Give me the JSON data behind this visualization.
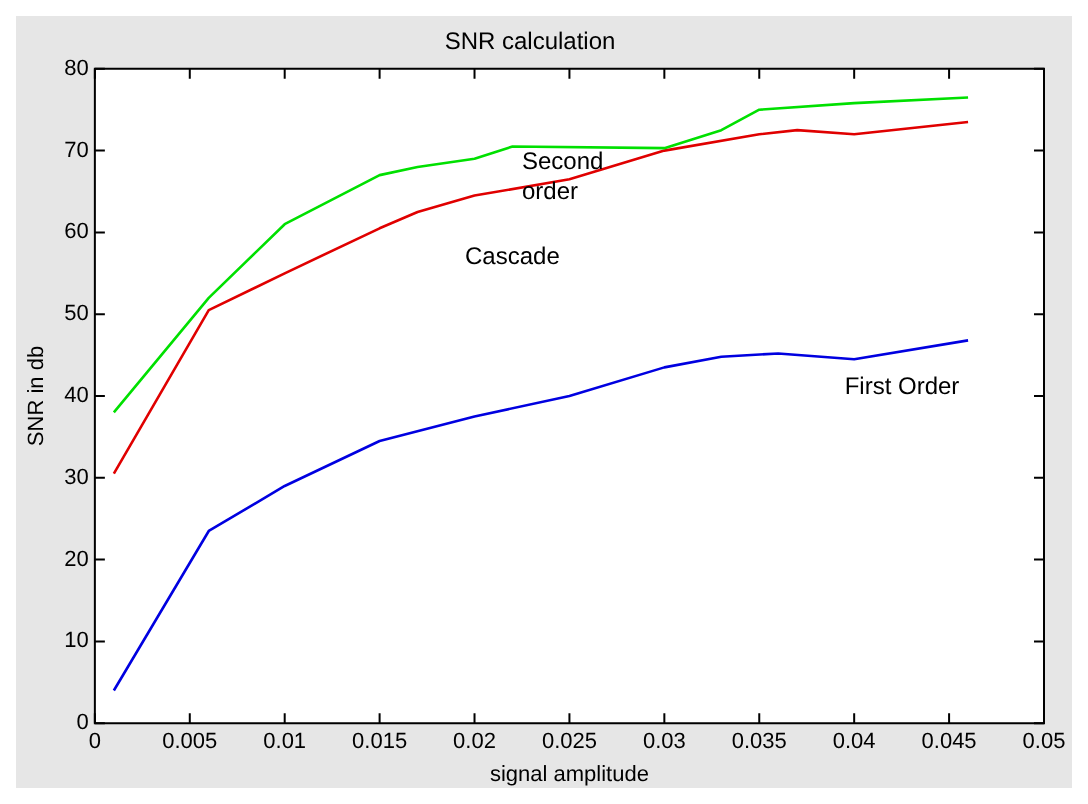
{
  "chart_data": {
    "type": "line",
    "title": "SNR calculation",
    "xlabel": "signal amplitude",
    "ylabel": "SNR in db",
    "xlim": [
      0,
      0.05
    ],
    "xticks": [
      0,
      0.005,
      0.01,
      0.015,
      0.02,
      0.025,
      0.03,
      0.035,
      0.04,
      0.045,
      0.05
    ],
    "ylim": [
      0,
      80
    ],
    "yticks": [
      0,
      10,
      20,
      30,
      40,
      50,
      60,
      70,
      80
    ],
    "grid": false,
    "legend": false,
    "marker": "none",
    "line_style": "solid",
    "series": [
      {
        "name": "Second order",
        "color": "#00e000",
        "x": [
          0.001,
          0.006,
          0.01,
          0.015,
          0.017,
          0.02,
          0.022,
          0.03,
          0.033,
          0.035,
          0.04,
          0.046
        ],
        "values": [
          38,
          52,
          61,
          67,
          68,
          69,
          70.5,
          70.3,
          72.5,
          75,
          75.8,
          76.5
        ]
      },
      {
        "name": "Cascade",
        "color": "#e00000",
        "x": [
          0.001,
          0.006,
          0.01,
          0.015,
          0.017,
          0.02,
          0.025,
          0.03,
          0.035,
          0.037,
          0.04,
          0.046
        ],
        "values": [
          30.5,
          50.5,
          55,
          60.5,
          62.5,
          64.5,
          66.5,
          70,
          72,
          72.5,
          72,
          73.5
        ]
      },
      {
        "name": "First Order",
        "color": "#0000e0",
        "x": [
          0.001,
          0.006,
          0.01,
          0.015,
          0.02,
          0.025,
          0.03,
          0.033,
          0.036,
          0.04,
          0.046
        ],
        "values": [
          4,
          23.5,
          29,
          34.5,
          37.5,
          40,
          43.5,
          44.8,
          45.2,
          44.5,
          46.8
        ]
      }
    ]
  }
}
